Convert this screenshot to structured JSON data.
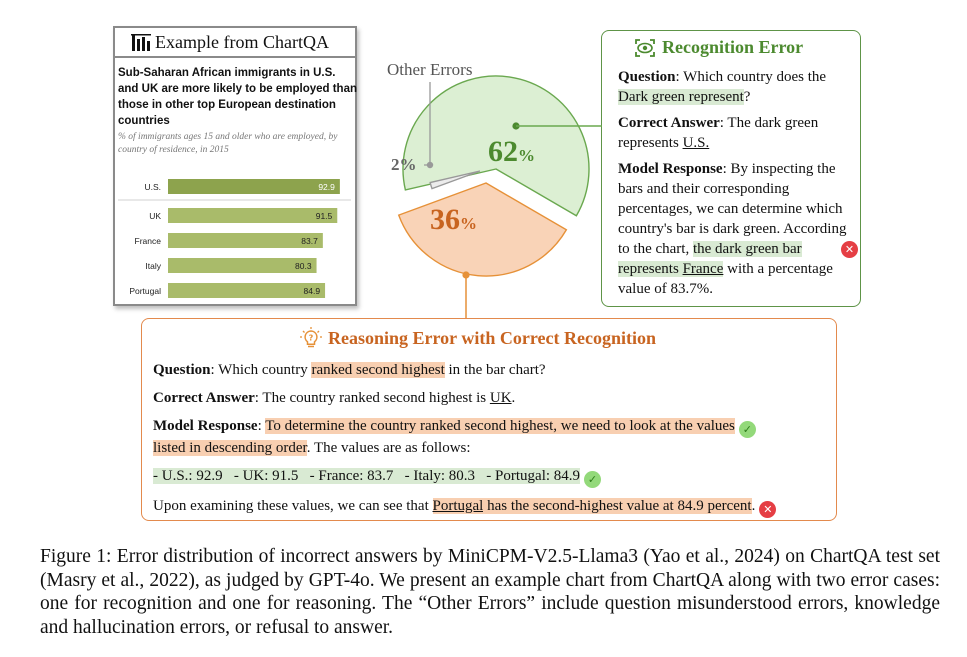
{
  "example": {
    "header": "Example from ChartQA",
    "chart_title": "Sub-Saharan African immigrants in U.S. and UK are more likely to be employed than those in other top European destination countries",
    "chart_subtitle": "% of immigrants ages 15 and older who are employed, by country of residence, in 2015",
    "bar_color": "#8da34d",
    "bar_color_light": "#a9bb6a"
  },
  "chart_data": [
    {
      "type": "bar",
      "orientation": "horizontal",
      "title": "Sub-Saharan African immigrants in U.S. and UK are more likely to be employed than those in other top European destination countries",
      "subtitle": "% of immigrants ages 15 and older who are employed, by country of residence, in 2015",
      "categories": [
        "U.S.",
        "UK",
        "France",
        "Italy",
        "Portugal"
      ],
      "values": [
        92.9,
        91.5,
        83.7,
        80.3,
        84.9
      ],
      "value_labels": [
        "92.9",
        "91.5",
        "83.7",
        "80.3",
        "84.9"
      ],
      "xlim": [
        0,
        100
      ]
    },
    {
      "type": "pie",
      "categories": [
        "Recognition Error",
        "Reasoning Error with Correct Recognition",
        "Other Errors"
      ],
      "values": [
        62,
        36,
        2
      ],
      "labels": [
        "62%",
        "36%",
        "2%"
      ],
      "colors": [
        "#dcefd3",
        "#f9d3b7",
        "#ececec"
      ],
      "annotation": "Other Errors"
    }
  ],
  "pie": {
    "label_62": "62%",
    "label_36": "36%",
    "label_2": "2%",
    "other_label": "Other Errors",
    "color_62": "#dcefd3",
    "color_36": "#f9d3b7",
    "color_2": "#ececec",
    "stroke_62": "#6aa84f",
    "stroke_36": "#e69138",
    "stroke_2": "#999999",
    "text_62": "#4c8a2f",
    "text_36": "#c86420"
  },
  "recognition": {
    "title": "Recognition Error",
    "accent": "#4c8a2f",
    "question_label": "Question",
    "question_pre": ": Which country does the ",
    "question_hl": "Dark green represent",
    "question_post": "?",
    "answer_label": "Correct Answer",
    "answer_pre": ": The dark green represents ",
    "answer_ul": "U.S.",
    "response_label": "Model Response",
    "response_pre": ": By inspecting the bars and their corresponding percentages, we can determine which country's bar is dark green. According to the chart, ",
    "response_hl1": "the dark green bar represents ",
    "response_hl_ul": "France",
    "response_post": " with a percentage value of 83.7%."
  },
  "reasoning": {
    "title": "Reasoning Error with Correct Recognition",
    "accent": "#c86420",
    "question_label": "Question",
    "question_pre": ": Which country ",
    "question_hl": "ranked second highest",
    "question_post": " in the bar chart?",
    "answer_label": "Correct Answer",
    "answer_pre": ": The country ranked second highest is ",
    "answer_ul": "UK",
    "answer_post": ".",
    "response_label": "Model Response",
    "response_sep": ": ",
    "response_hl_line1": "To determine the country ranked second highest, we need to look at the values",
    "response_hl_line2": "listed in descending order",
    "response_post": ". The values are as follows:",
    "values_line": "- U.S.: 92.9   - UK: 91.5   - France: 83.7   - Italy: 80.3   - Portugal: 84.9",
    "final_pre": "Upon examining these values, we can see that ",
    "final_ul": "Portugal",
    "final_hl": " has the second-highest value at 84.9 percent",
    "final_post": "."
  },
  "caption": "Figure 1: Error distribution of incorrect answers by MiniCPM-V2.5-Llama3 (Yao et al., 2024) on ChartQA test set (Masry et al., 2022), as judged by GPT-4o.  We present an example chart from ChartQA along with two error cases: one for recognition and one for reasoning. The “Other Errors” include question misunderstood errors, knowledge and hallucination errors, or refusal to answer."
}
